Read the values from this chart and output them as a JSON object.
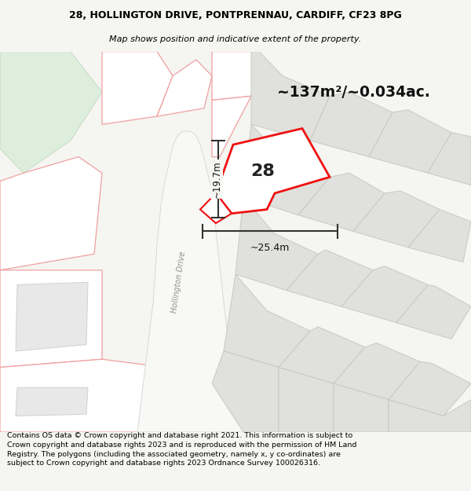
{
  "title_line1": "28, HOLLINGTON DRIVE, PONTPRENNAU, CARDIFF, CF23 8PG",
  "title_line2": "Map shows position and indicative extent of the property.",
  "area_text": "~137m²/~0.034ac.",
  "width_text": "~25.4m",
  "height_text": "~19.7m",
  "number_text": "28",
  "road_label": "Hollington Drive",
  "footer_text": "Contains OS data © Crown copyright and database right 2021. This information is subject to Crown copyright and database rights 2023 and is reproduced with the permission of HM Land Registry. The polygons (including the associated geometry, namely x, y co-ordinates) are subject to Crown copyright and database rights 2023 Ordnance Survey 100026316.",
  "bg_color": "#f5f5f2",
  "map_bg": "#f5f5f2",
  "grey_parcel_fill": "#e0e0dc",
  "grey_parcel_edge": "#c8c8c4",
  "pink_edge": "#f0a0a0",
  "red_edge": "#ee1111",
  "plot_fill": "#f8f8f8",
  "road_fill": "#f0f0ee",
  "green_fill": "#ddeedd",
  "title_fontsize": 9.0,
  "subtitle_fontsize": 8.0,
  "footer_fontsize": 6.8
}
